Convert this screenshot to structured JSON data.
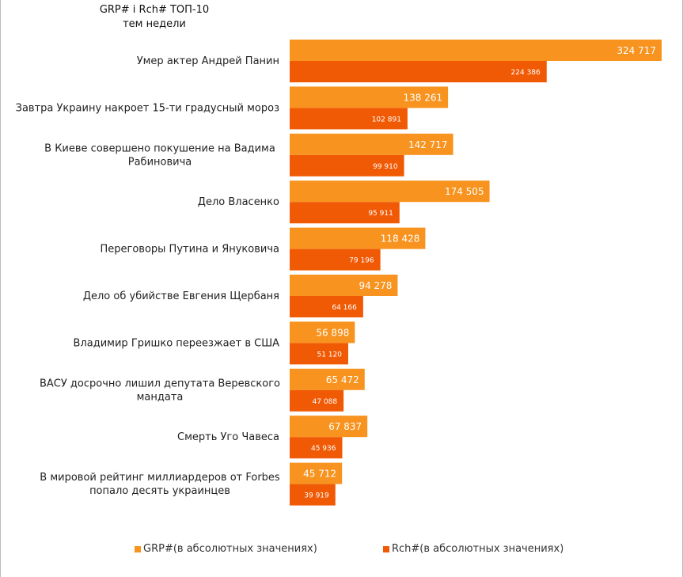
{
  "chart_data": {
    "type": "bar",
    "orientation": "horizontal",
    "title": "GRP# і Rch# ТОП-10 тем недели",
    "title_lines": [
      "GRP# і Rch# ТОП-10",
      "тем недели"
    ],
    "categories": [
      "Умер актер Андрей Панин",
      "Завтра Украину накроет 15-ти градусный мороз",
      "В Киеве совершено покушение на Вадима Рабиновича",
      "Дело Власенко",
      "Переговоры Путина и Януковича",
      "Дело об убийстве Евгения Щербаня",
      "Владимир Гришко переезжает в США",
      "ВАСУ досрочно лишил депутата Веревского мандата",
      "Смерть Уго Чавеса",
      "В мировой рейтинг миллиардеров от Forbes попало десять украинцев"
    ],
    "category_lines": [
      [
        "Умер актер Андрей Панин"
      ],
      [
        "Завтра Украину накроет 15-ти градусный мороз"
      ],
      [
        "В Киеве совершено покушение на Вадима",
        "Рабиновича"
      ],
      [
        "Дело Власенко"
      ],
      [
        "Переговоры Путина и Януковича"
      ],
      [
        "Дело об убийстве Евгения Щербаня"
      ],
      [
        "Владимир Гришко переезжает в США"
      ],
      [
        "ВАСУ досрочно лишил депутата Веревского",
        "мандата"
      ],
      [
        "Смерть Уго Чавеса"
      ],
      [
        "В мировой рейтинг миллиардеров от Forbes",
        "попало десять украинцев"
      ]
    ],
    "series": [
      {
        "name": "GRP#(в абсолютных значениях)",
        "color": "#f7931e",
        "values": [
          324717,
          138261,
          142717,
          174505,
          118428,
          94278,
          56898,
          65472,
          67837,
          45712
        ],
        "labels": [
          "324 717",
          "138 261",
          "142 717",
          "174 505",
          "118 428",
          "94 278",
          "56 898",
          "65 472",
          "67 837",
          "45 712"
        ]
      },
      {
        "name": "Rch#(в абсолютных значениях)",
        "color": "#f15a05",
        "values": [
          224386,
          102891,
          99910,
          95911,
          79196,
          64166,
          51120,
          47088,
          45936,
          39919
        ],
        "labels": [
          "224 386",
          "102 891",
          "99 910",
          "95 911",
          "79 196",
          "64 166",
          "51 120",
          "47 088",
          "45 936",
          "39 919"
        ]
      }
    ],
    "xlim": [
      0,
      324717
    ],
    "grid": false,
    "axes_visible": false,
    "legend_position": "bottom"
  },
  "legend": {
    "grp_label": "GRP#(в абсолютных значениях)",
    "rch_label": "Rch#(в абсолютных значениях)"
  }
}
